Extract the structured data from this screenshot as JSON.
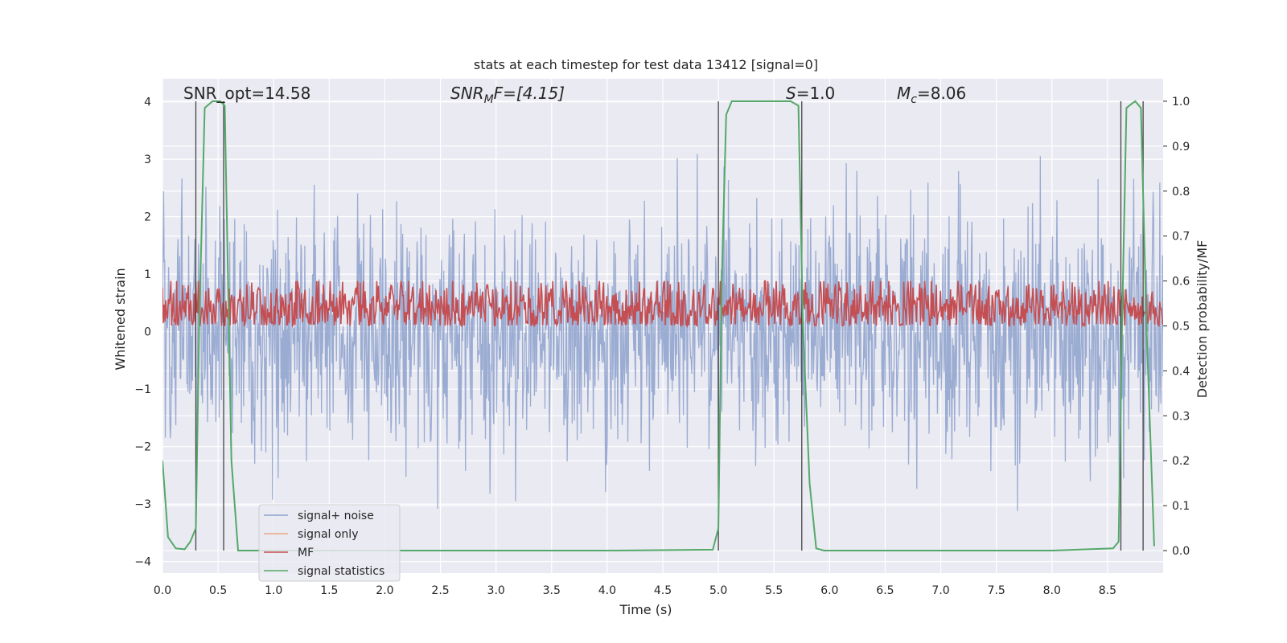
{
  "chart_data": {
    "type": "line",
    "title": "stats at each timestep for test data 13412 [signal=0]",
    "xlabel": "Time (s)",
    "ylabel_left": "Whitened strain",
    "ylabel_right": "Detection probability/MF",
    "xlim": [
      0.0,
      9.0
    ],
    "ylim_left": [
      -4.2,
      4.4
    ],
    "ylim_right": [
      -0.05,
      1.05
    ],
    "xticks": [
      0.0,
      0.5,
      1.0,
      1.5,
      2.0,
      2.5,
      3.0,
      3.5,
      4.0,
      4.5,
      5.0,
      5.5,
      6.0,
      6.5,
      7.0,
      7.5,
      8.0,
      8.5
    ],
    "xtick_labels": [
      "0.0",
      "0.5",
      "1.0",
      "1.5",
      "2.0",
      "2.5",
      "3.0",
      "3.5",
      "4.0",
      "4.5",
      "5.0",
      "5.5",
      "6.0",
      "6.5",
      "7.0",
      "7.5",
      "8.0",
      "8.5"
    ],
    "yticks_left": [
      4,
      3,
      2,
      1,
      0,
      -1,
      -2,
      -3,
      -4
    ],
    "ytick_labels_left": [
      "4",
      "3",
      "2",
      "1",
      "0",
      "−1",
      "−2",
      "−3",
      "−4"
    ],
    "yticks_right": [
      1.0,
      0.9,
      0.8,
      0.7,
      0.6,
      0.5,
      0.4,
      0.3,
      0.2,
      0.1,
      0.0
    ],
    "ytick_labels_right": [
      "1.0",
      "0.9",
      "0.8",
      "0.7",
      "0.6",
      "0.5",
      "0.4",
      "0.3",
      "0.2",
      "0.1",
      "0.0"
    ],
    "annotations": {
      "snr_opt": "SNR_opt=14.58",
      "snr_mf_sym": "SNR",
      "snr_mf_sub": "M",
      "snr_mf_rest": "F=[4.15]",
      "s_sym": "S",
      "s_val": "=1.0",
      "mc_sym": "M",
      "mc_sub": "c",
      "mc_val": "=8.06"
    },
    "legend": {
      "location": "lower-left",
      "entries": [
        {
          "label": "signal+ noise",
          "color": "#8da1cc"
        },
        {
          "label": "signal only",
          "color": "#eaa784"
        },
        {
          "label": "MF",
          "color": "#c44e52"
        },
        {
          "label": "signal statistics",
          "color": "#55a868"
        }
      ]
    },
    "series": [
      {
        "name": "signal+ noise",
        "axis": "left",
        "kind": "noise",
        "color": "#8da1cc",
        "sigma": 1.05,
        "t_start": 0.0,
        "t_end": 9.0,
        "samples": 1800
      },
      {
        "name": "signal only",
        "axis": "left",
        "kind": "flat",
        "color": "#eaa784",
        "values": []
      },
      {
        "name": "MF",
        "axis": "right",
        "kind": "noise",
        "color": "#c44e52",
        "mean": 0.54,
        "spread": 0.035,
        "min": 0.5,
        "max": 0.6,
        "samples": 1200
      },
      {
        "name": "signal statistics",
        "axis": "right",
        "color": "#55a868",
        "x": [
          0.0,
          0.05,
          0.12,
          0.2,
          0.25,
          0.3,
          0.33,
          0.38,
          0.45,
          0.52,
          0.56,
          0.62,
          0.68,
          1.0,
          2.0,
          3.0,
          4.0,
          4.95,
          5.0,
          5.03,
          5.07,
          5.12,
          5.3,
          5.5,
          5.65,
          5.72,
          5.76,
          5.82,
          5.88,
          5.95,
          6.5,
          7.5,
          8.0,
          8.55,
          8.6,
          8.63,
          8.67,
          8.72,
          8.75,
          8.8,
          8.85,
          8.92
        ],
        "y": [
          0.2,
          0.03,
          0.005,
          0.003,
          0.02,
          0.05,
          0.5,
          0.985,
          1.0,
          1.0,
          0.99,
          0.2,
          0.0,
          0.0,
          0.0,
          0.0,
          0.0,
          0.002,
          0.05,
          0.6,
          0.97,
          1.0,
          1.0,
          1.0,
          1.0,
          0.99,
          0.5,
          0.15,
          0.005,
          0.0,
          0.0,
          0.0,
          0.0,
          0.005,
          0.02,
          0.5,
          0.985,
          0.995,
          1.0,
          0.985,
          0.5,
          0.01
        ]
      }
    ],
    "vertical_lines": [
      0.3,
      0.55,
      5.0,
      5.75,
      8.62,
      8.82
    ]
  }
}
